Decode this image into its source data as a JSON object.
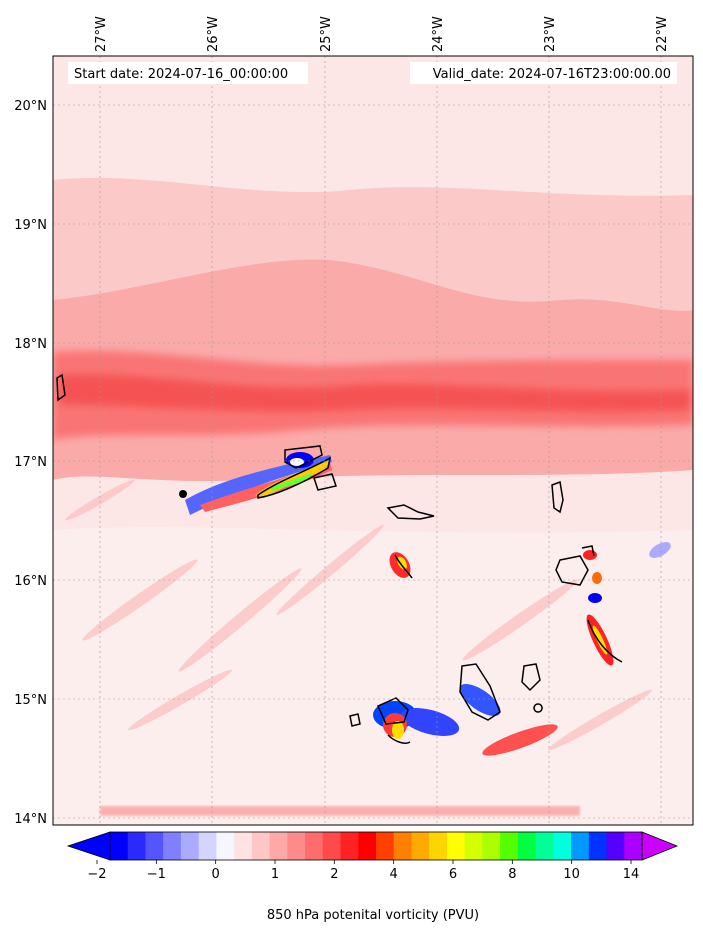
{
  "header": {
    "start_label": "Start date: 2024-07-16_00:00:00",
    "valid_label": "Valid_date: 2024-07-16T23:00:00.00"
  },
  "map": {
    "projection": "lat-lon",
    "lon_ticks": [
      "27°W",
      "26°W",
      "25°W",
      "24°W",
      "23°W",
      "22°W"
    ],
    "lat_ticks": [
      "20°N",
      "19°N",
      "18°N",
      "17°N",
      "16°N",
      "15°N",
      "14°N"
    ],
    "grid": true,
    "field": "850 hPa potential vorticity",
    "background_color": "#fde2e2",
    "bands": [
      {
        "name": "northern-band",
        "color": "#fcc7c7"
      },
      {
        "name": "mid-band",
        "color": "#faa3a3"
      },
      {
        "name": "jet-band",
        "color": "#f86b6b"
      },
      {
        "name": "southern-band",
        "color": "#fef0f0"
      }
    ],
    "islands": [
      {
        "name": "santo-antao"
      },
      {
        "name": "sao-vicente"
      },
      {
        "name": "santa-luzia"
      },
      {
        "name": "sao-nicolau"
      },
      {
        "name": "sal"
      },
      {
        "name": "boa-vista"
      },
      {
        "name": "maio"
      },
      {
        "name": "santiago"
      },
      {
        "name": "fogo"
      },
      {
        "name": "brava"
      }
    ]
  },
  "colorbar": {
    "label": "850 hPa potenital vorticity (PVU)",
    "extend": "both",
    "tick_labels": [
      "−2",
      "−1",
      "0",
      "1",
      "2",
      "4",
      "6",
      "8",
      "10",
      "14"
    ],
    "colors": [
      "#0000ff",
      "#2a2aff",
      "#5555ff",
      "#8080ff",
      "#aaaaff",
      "#d4d4ff",
      "#f6f6ff",
      "#ffe2e2",
      "#ffc6c6",
      "#ffa8a8",
      "#ff8a8a",
      "#ff6c6c",
      "#ff4a4a",
      "#ff2222",
      "#ff0000",
      "#ff4000",
      "#ff8000",
      "#ffaa00",
      "#ffd400",
      "#ffff00",
      "#d4ff00",
      "#aaff00",
      "#55ff00",
      "#00ff40",
      "#00ff99",
      "#00ffdd",
      "#0099ff",
      "#0033ff",
      "#5500ff",
      "#aa00ff"
    ],
    "extend_low_color": "#0000ff",
    "extend_high_color": "#cc00ff"
  }
}
